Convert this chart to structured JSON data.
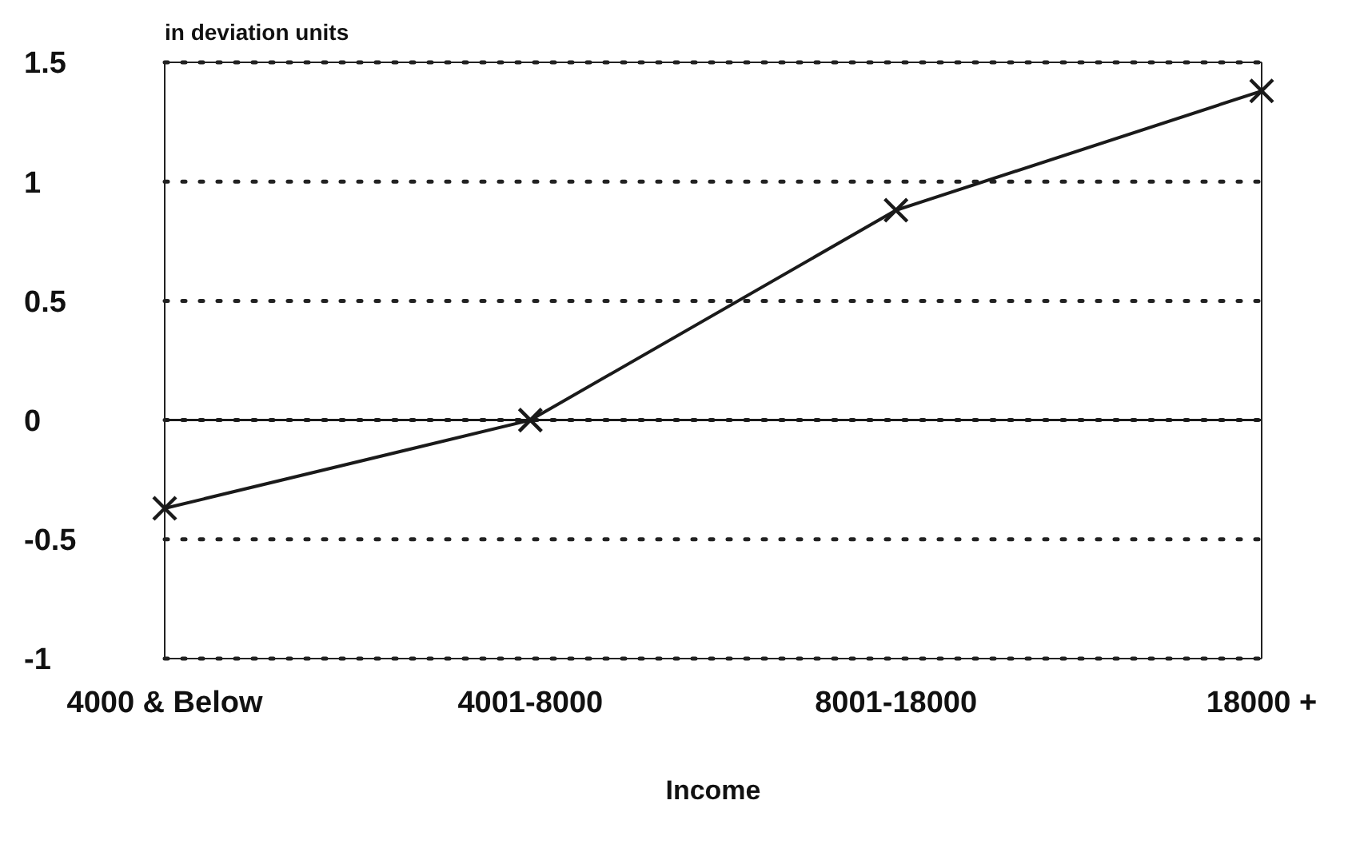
{
  "chart_data": {
    "type": "line",
    "ylabel": "in deviation units",
    "xlabel": "Income",
    "categories": [
      "4000 & Below",
      "4001-8000",
      "8001-18000",
      "18000 +"
    ],
    "series": [
      {
        "color": "#1a1a1a",
        "values": [
          -0.37,
          0,
          0.88,
          1.38
        ]
      }
    ],
    "ylim": [
      -1,
      1.5
    ],
    "yticks": [
      -1,
      -0.5,
      0,
      0.5,
      1,
      1.5
    ],
    "grid": "y",
    "marker": "cross",
    "line_style": "solid",
    "ref_lines": [
      {
        "axis": "y",
        "value": 0,
        "color": "#1a1a1a",
        "line_style": "solid"
      }
    ]
  }
}
